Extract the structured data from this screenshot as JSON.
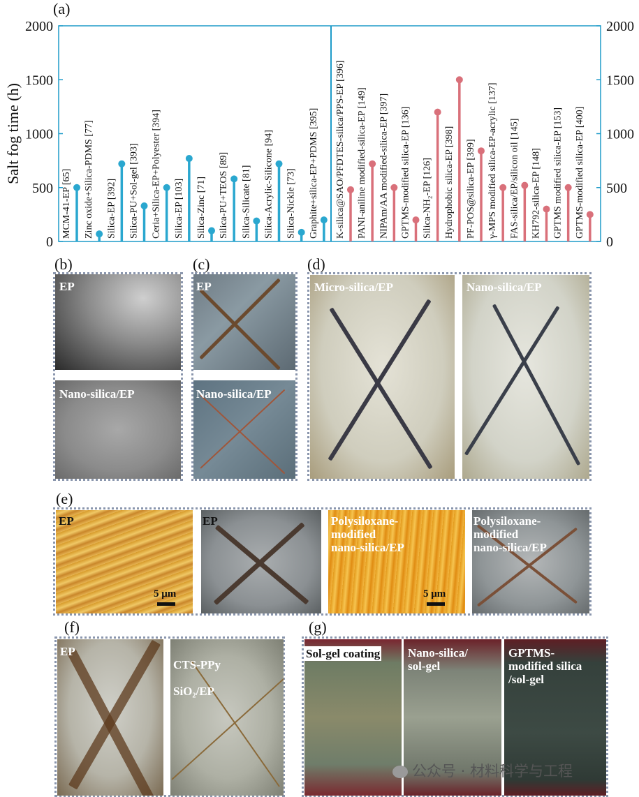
{
  "panel_labels": {
    "a": "(a)",
    "b": "(b)",
    "c": "(c)",
    "d": "(d)",
    "e": "(e)",
    "f": "(f)",
    "g": "(g)"
  },
  "chart_data": {
    "type": "lollipop",
    "ylabel": "Salt fog time (h)",
    "ylim": [
      0,
      2000
    ],
    "yticks": [
      0,
      500,
      1000,
      1500,
      2000
    ],
    "colors": {
      "blue": "#2aa7cf",
      "red": "#d9707a",
      "axis": "#1e9bc9"
    },
    "series": [
      {
        "group": "blue",
        "points": [
          {
            "label": "MCM-41-EP [65]",
            "value": 500
          },
          {
            "label": "Zinc oxide+Silica-PDMS [77]",
            "value": 70
          },
          {
            "label": "Silica-EP [392]",
            "value": 720
          },
          {
            "label": "Silica-PU+Sol-gel [393]",
            "value": 330
          },
          {
            "label": "Ceria+Silica-EP+Polyester [394]",
            "value": 500
          },
          {
            "label": "Silica-EP [103]",
            "value": 770
          },
          {
            "label": "Silica-Zinc [71]",
            "value": 100
          },
          {
            "label": "Silica-PU+TEOS [89]",
            "value": 580
          },
          {
            "label": "Silica-Silicate [81]",
            "value": 190
          },
          {
            "label": "Silica-Acrylic-Silicone [94]",
            "value": 720
          },
          {
            "label": "Silica-Nickle [73]",
            "value": 85
          },
          {
            "label": "Graphite+silica-EP+PDMS [395]",
            "value": 200
          }
        ]
      },
      {
        "group": "red",
        "points": [
          {
            "label": "K-silica@SAO/PFDTES-silica/PPS-EP [396]",
            "value": 480
          },
          {
            "label": "PANI-aniline modified-silica-EP [149]",
            "value": 720
          },
          {
            "label": "NIPAm/AA modified-silica-EP [397]",
            "value": 500
          },
          {
            "label": "GPTMS-modified silica-EP [136]",
            "value": 200
          },
          {
            "label": "Silica-NH₂-EP [126]",
            "value": 1200
          },
          {
            "label": "Hydrophobic silica-EP [398]",
            "value": 1500
          },
          {
            "label": "PF-POS@silica-EP [399]",
            "value": 840
          },
          {
            "label": "γ-MPS modified silica-EP-acrylic [137]",
            "value": 500
          },
          {
            "label": "FAS-silica/EP/silicon oil [145]",
            "value": 520
          },
          {
            "label": "KH792-silica-EP [148]",
            "value": 300
          },
          {
            "label": "GPTMS modified silica-EP [153]",
            "value": 500
          },
          {
            "label": "GPTMS-modified silica-EP [400]",
            "value": 250
          }
        ]
      }
    ]
  },
  "panel_b": {
    "top": "EP",
    "bottom": "Nano-silica/EP"
  },
  "panel_c": {
    "top": "EP",
    "bottom": "Nano-silica/EP"
  },
  "panel_d": {
    "left": "Micro-silica/EP",
    "right": "Nano-silica/EP"
  },
  "panel_e": {
    "img1": "EP",
    "img2": "EP",
    "img3": "Polysiloxane-\nmodified\nnano-silica/EP",
    "img4": "Polysiloxane-\nmodified\nnano-silica/EP",
    "scale1": "5 μm",
    "scale2": "5 μm"
  },
  "panel_f": {
    "left": "EP",
    "right_line1": "CTS-PPy",
    "right_line2": "SiO₂/EP"
  },
  "panel_g": {
    "img1": "Sol-gel coating",
    "img2": "Nano-silica/\nsol-gel",
    "img3": "GPTMS-\nmodified silica\n/sol-gel"
  },
  "watermark": "公众号 · 材料科学与工程"
}
